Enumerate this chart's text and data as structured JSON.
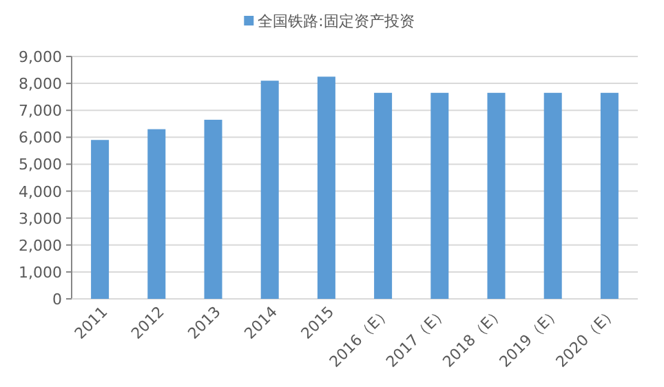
{
  "chart_data": {
    "type": "bar",
    "categories": [
      "2011",
      "2012",
      "2013",
      "2014",
      "2015",
      "2016（E）",
      "2017（E）",
      "2018（E）",
      "2019（E）",
      "2020（E）"
    ],
    "series": [
      {
        "name": "全国铁路:固定资产投资",
        "color": "#5b9bd5",
        "values": [
          5900,
          6300,
          6650,
          8100,
          8250,
          7650,
          7650,
          7650,
          7650,
          7650
        ]
      }
    ],
    "ylim": [
      0,
      9000
    ],
    "yticks": [
      {
        "value": 0,
        "label": "0"
      },
      {
        "value": 1000,
        "label": "1,000"
      },
      {
        "value": 2000,
        "label": "2,000"
      },
      {
        "value": 3000,
        "label": "3,000"
      },
      {
        "value": 4000,
        "label": "4,000"
      },
      {
        "value": 5000,
        "label": "5,000"
      },
      {
        "value": 6000,
        "label": "6,000"
      },
      {
        "value": 7000,
        "label": "7,000"
      },
      {
        "value": 8000,
        "label": "8,000"
      },
      {
        "value": 9000,
        "label": "9,000"
      }
    ],
    "grid": "y",
    "legend": "top"
  }
}
